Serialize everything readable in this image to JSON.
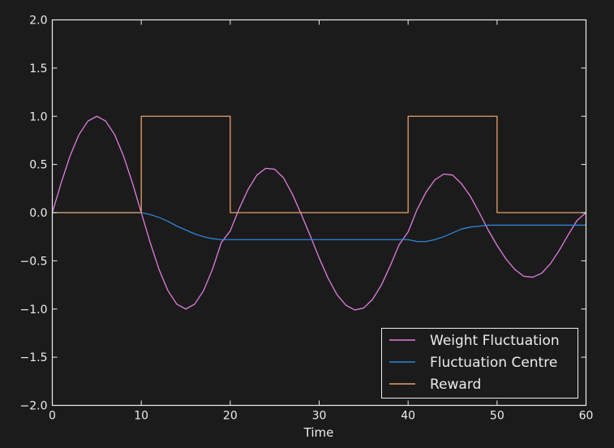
{
  "chart_data": {
    "type": "line",
    "title": "",
    "xlabel": "Time",
    "ylabel": "",
    "xlim": [
      0,
      60
    ],
    "ylim": [
      -2.0,
      2.0
    ],
    "xticks": [
      0,
      10,
      20,
      30,
      40,
      50,
      60
    ],
    "xtick_labels": [
      "0",
      "10",
      "20",
      "30",
      "40",
      "50",
      "60"
    ],
    "yticks": [
      2.0,
      1.5,
      1.0,
      0.5,
      0.0,
      -0.5,
      -1.0,
      -1.5,
      -2.0
    ],
    "ytick_labels": [
      "2.0",
      "1.5",
      "1.0",
      "0.5",
      "0.0",
      "−0.5",
      "−1.0",
      "−1.5",
      "−2.0"
    ],
    "grid": false,
    "legend_position": "lower-right",
    "background": "#1b1b1b",
    "foreground": "#ececec",
    "series": [
      {
        "name": "Weight Fluctuation",
        "color": "#e07ee0",
        "x": [
          0,
          1,
          2,
          3,
          4,
          5,
          6,
          7,
          8,
          9,
          10,
          11,
          12,
          13,
          14,
          15,
          16,
          17,
          18,
          19,
          20,
          21,
          22,
          23,
          24,
          25,
          26,
          27,
          28,
          29,
          30,
          31,
          32,
          33,
          34,
          35,
          36,
          37,
          38,
          39,
          40,
          41,
          42,
          43,
          44,
          45,
          46,
          47,
          48,
          49,
          50,
          51,
          52,
          53,
          54,
          55,
          56,
          57,
          58,
          59,
          60
        ],
        "y": [
          0.0,
          0.31,
          0.59,
          0.81,
          0.95,
          1.0,
          0.95,
          0.81,
          0.59,
          0.31,
          0.0,
          -0.31,
          -0.59,
          -0.81,
          -0.95,
          -1.0,
          -0.95,
          -0.81,
          -0.59,
          -0.31,
          -0.19,
          0.04,
          0.24,
          0.39,
          0.46,
          0.45,
          0.36,
          0.19,
          -0.02,
          -0.24,
          -0.47,
          -0.68,
          -0.85,
          -0.96,
          -1.01,
          -0.99,
          -0.9,
          -0.75,
          -0.55,
          -0.33,
          -0.2,
          0.03,
          0.21,
          0.34,
          0.4,
          0.39,
          0.3,
          0.17,
          0.0,
          -0.18,
          -0.34,
          -0.48,
          -0.59,
          -0.66,
          -0.67,
          -0.63,
          -0.53,
          -0.39,
          -0.23,
          -0.08,
          0.0
        ]
      },
      {
        "name": "Fluctuation Centre",
        "color": "#2f85d8",
        "x": [
          0,
          10,
          11,
          12,
          13,
          14,
          15,
          16,
          17,
          18,
          19,
          20,
          22,
          25,
          30,
          35,
          40,
          41,
          42,
          43,
          44,
          45,
          46,
          47,
          48,
          49,
          50,
          52,
          55,
          60
        ],
        "y": [
          0.0,
          0.0,
          -0.02,
          -0.05,
          -0.09,
          -0.14,
          -0.18,
          -0.22,
          -0.25,
          -0.27,
          -0.28,
          -0.28,
          -0.28,
          -0.28,
          -0.28,
          -0.28,
          -0.28,
          -0.3,
          -0.3,
          -0.28,
          -0.25,
          -0.21,
          -0.17,
          -0.15,
          -0.14,
          -0.13,
          -0.13,
          -0.13,
          -0.13,
          -0.13
        ]
      },
      {
        "name": "Reward",
        "color": "#e7a06a",
        "x": [
          0,
          10,
          10,
          20,
          20,
          40,
          40,
          50,
          50,
          60
        ],
        "y": [
          0,
          0,
          1,
          1,
          0,
          0,
          1,
          1,
          0,
          0
        ]
      }
    ]
  }
}
